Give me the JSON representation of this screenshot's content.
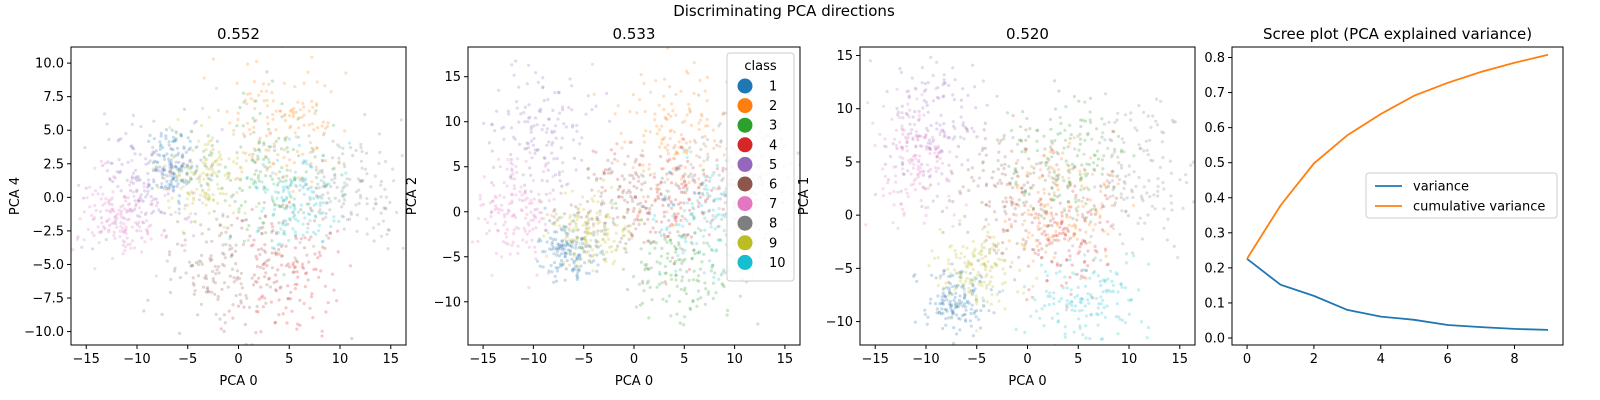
{
  "suptitle": "Discriminating PCA directions",
  "colors": {
    "1": "#1f77b4",
    "2": "#ff7f0e",
    "3": "#2ca02c",
    "4": "#d62728",
    "5": "#9467bd",
    "6": "#8c564b",
    "7": "#e377c2",
    "8": "#7f7f7f",
    "9": "#bcbd22",
    "10": "#17becf"
  },
  "legend": {
    "title": "class",
    "entries": [
      "1",
      "2",
      "3",
      "4",
      "5",
      "6",
      "7",
      "8",
      "9",
      "10"
    ],
    "location": "top-right of second panel"
  },
  "chart_data": [
    {
      "type": "scatter",
      "title": "0.552",
      "xlabel": "PCA 0",
      "ylabel": "PCA 4",
      "xlim": [
        -16.5,
        16.5
      ],
      "ylim": [
        -11.0,
        11.2
      ],
      "xticks": [
        -15,
        -10,
        -5,
        0,
        5,
        10,
        15
      ],
      "yticks": [
        -10.0,
        -7.5,
        -5.0,
        -2.5,
        0.0,
        2.5,
        5.0,
        7.5,
        10.0
      ],
      "ytick_labels": [
        "−10.0",
        "−7.5",
        "−5.0",
        "−2.5",
        "0.0",
        "2.5",
        "5.0",
        "7.5",
        "10.0"
      ],
      "grid": false,
      "point_alpha": 0.25,
      "clusters": [
        {
          "class": "1",
          "center": [
            -6.5,
            2.5
          ],
          "spread": [
            1.5,
            1.3
          ]
        },
        {
          "class": "2",
          "center": [
            4.0,
            5.5
          ],
          "spread": [
            3.0,
            2.5
          ]
        },
        {
          "class": "3",
          "center": [
            2.5,
            1.5
          ],
          "spread": [
            3.0,
            3.0
          ]
        },
        {
          "class": "4",
          "center": [
            4.5,
            -5.5
          ],
          "spread": [
            2.8,
            2.5
          ]
        },
        {
          "class": "5",
          "center": [
            -9.0,
            1.0
          ],
          "spread": [
            3.0,
            2.0
          ]
        },
        {
          "class": "6",
          "center": [
            -2.0,
            -5.5
          ],
          "spread": [
            3.0,
            2.5
          ]
        },
        {
          "class": "7",
          "center": [
            -11.5,
            -1.5
          ],
          "spread": [
            2.0,
            1.5
          ]
        },
        {
          "class": "8",
          "center": [
            11.0,
            0.5
          ],
          "spread": [
            3.0,
            2.0
          ]
        },
        {
          "class": "9",
          "center": [
            -3.5,
            1.5
          ],
          "spread": [
            2.0,
            1.8
          ]
        },
        {
          "class": "10",
          "center": [
            6.0,
            -0.5
          ],
          "spread": [
            2.5,
            2.0
          ]
        }
      ]
    },
    {
      "type": "scatter",
      "title": "0.533",
      "xlabel": "PCA 0",
      "ylabel": "PCA 2",
      "xlim": [
        -16.5,
        16.5
      ],
      "ylim": [
        -14.8,
        18.3
      ],
      "xticks": [
        -15,
        -10,
        -5,
        0,
        5,
        10,
        15
      ],
      "yticks": [
        -10,
        -5,
        0,
        5,
        10,
        15
      ],
      "ytick_labels": [
        "−10",
        "−5",
        "0",
        "5",
        "10",
        "15"
      ],
      "grid": false,
      "point_alpha": 0.25,
      "clusters": [
        {
          "class": "1",
          "center": [
            -6.5,
            -4.5
          ],
          "spread": [
            1.5,
            1.5
          ]
        },
        {
          "class": "2",
          "center": [
            4.0,
            8.5
          ],
          "spread": [
            3.0,
            3.5
          ]
        },
        {
          "class": "3",
          "center": [
            4.5,
            -6.5
          ],
          "spread": [
            3.0,
            3.0
          ]
        },
        {
          "class": "4",
          "center": [
            4.0,
            1.5
          ],
          "spread": [
            3.0,
            3.0
          ]
        },
        {
          "class": "5",
          "center": [
            -9.0,
            8.0
          ],
          "spread": [
            3.0,
            3.5
          ]
        },
        {
          "class": "6",
          "center": [
            -1.0,
            0.5
          ],
          "spread": [
            3.0,
            3.0
          ]
        },
        {
          "class": "7",
          "center": [
            -11.5,
            0.0
          ],
          "spread": [
            2.0,
            3.0
          ]
        },
        {
          "class": "8",
          "center": [
            11.0,
            4.0
          ],
          "spread": [
            3.0,
            3.5
          ]
        },
        {
          "class": "9",
          "center": [
            -4.0,
            -2.0
          ],
          "spread": [
            2.0,
            2.0
          ]
        },
        {
          "class": "10",
          "center": [
            7.0,
            -1.0
          ],
          "spread": [
            3.0,
            3.0
          ]
        }
      ]
    },
    {
      "type": "scatter",
      "title": "0.520",
      "xlabel": "PCA 0",
      "ylabel": "PCA 1",
      "xlim": [
        -16.5,
        16.5
      ],
      "ylim": [
        -12.2,
        15.8
      ],
      "xticks": [
        -15,
        -10,
        -5,
        0,
        5,
        10,
        15
      ],
      "yticks": [
        -10,
        -5,
        0,
        5,
        10,
        15
      ],
      "ytick_labels": [
        "−10",
        "−5",
        "0",
        "5",
        "10",
        "15"
      ],
      "grid": false,
      "point_alpha": 0.25,
      "clusters": [
        {
          "class": "1",
          "center": [
            -7.0,
            -8.0
          ],
          "spread": [
            1.5,
            1.5
          ]
        },
        {
          "class": "2",
          "center": [
            3.5,
            0.5
          ],
          "spread": [
            3.0,
            3.0
          ]
        },
        {
          "class": "3",
          "center": [
            3.5,
            5.0
          ],
          "spread": [
            3.0,
            3.0
          ]
        },
        {
          "class": "4",
          "center": [
            3.5,
            -1.5
          ],
          "spread": [
            3.0,
            3.0
          ]
        },
        {
          "class": "5",
          "center": [
            -9.0,
            9.0
          ],
          "spread": [
            3.0,
            3.5
          ]
        },
        {
          "class": "6",
          "center": [
            -2.0,
            2.0
          ],
          "spread": [
            3.0,
            3.0
          ]
        },
        {
          "class": "7",
          "center": [
            -11.5,
            5.0
          ],
          "spread": [
            2.0,
            3.0
          ]
        },
        {
          "class": "8",
          "center": [
            11.0,
            4.0
          ],
          "spread": [
            3.0,
            3.5
          ]
        },
        {
          "class": "9",
          "center": [
            -5.0,
            -5.0
          ],
          "spread": [
            2.0,
            2.0
          ]
        },
        {
          "class": "10",
          "center": [
            5.5,
            -8.0
          ],
          "spread": [
            3.0,
            2.0
          ]
        }
      ]
    },
    {
      "type": "line",
      "title": "Scree plot (PCA explained variance)",
      "xlabel": "",
      "ylabel": "",
      "xlim": [
        -0.45,
        9.45
      ],
      "ylim": [
        -0.02,
        0.83
      ],
      "xticks": [
        0,
        2,
        4,
        6,
        8
      ],
      "yticks": [
        0.0,
        0.1,
        0.2,
        0.3,
        0.4,
        0.5,
        0.6,
        0.7,
        0.8
      ],
      "ytick_labels": [
        "0.0",
        "0.1",
        "0.2",
        "0.3",
        "0.4",
        "0.5",
        "0.6",
        "0.7",
        "0.8"
      ],
      "grid": false,
      "legend_location": "center-right",
      "x": [
        0,
        1,
        2,
        3,
        4,
        5,
        6,
        7,
        8,
        9
      ],
      "series": [
        {
          "name": "variance",
          "color": "#1f77b4",
          "values": [
            0.226,
            0.152,
            0.12,
            0.08,
            0.061,
            0.052,
            0.037,
            0.031,
            0.026,
            0.023
          ]
        },
        {
          "name": "cumulative variance",
          "color": "#ff7f0e",
          "values": [
            0.226,
            0.378,
            0.498,
            0.578,
            0.639,
            0.691,
            0.728,
            0.759,
            0.785,
            0.808
          ]
        }
      ]
    }
  ]
}
